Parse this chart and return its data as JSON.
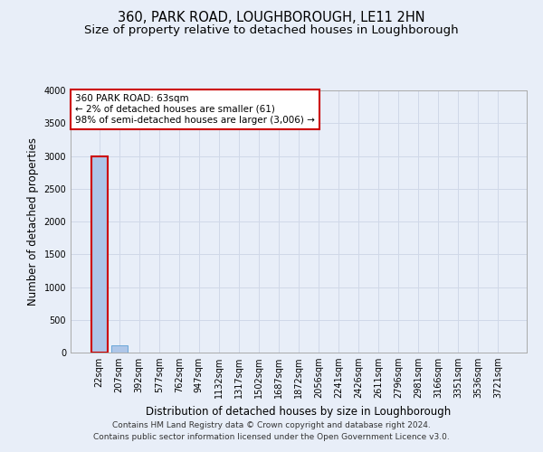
{
  "title": "360, PARK ROAD, LOUGHBOROUGH, LE11 2HN",
  "subtitle": "Size of property relative to detached houses in Loughborough",
  "xlabel": "Distribution of detached houses by size in Loughborough",
  "ylabel": "Number of detached properties",
  "categories": [
    "22sqm",
    "207sqm",
    "392sqm",
    "577sqm",
    "762sqm",
    "947sqm",
    "1132sqm",
    "1317sqm",
    "1502sqm",
    "1687sqm",
    "1872sqm",
    "2056sqm",
    "2241sqm",
    "2426sqm",
    "2611sqm",
    "2796sqm",
    "2981sqm",
    "3166sqm",
    "3351sqm",
    "3536sqm",
    "3721sqm"
  ],
  "values": [
    3000,
    110,
    5,
    3,
    2,
    2,
    1,
    1,
    1,
    1,
    1,
    1,
    1,
    1,
    1,
    1,
    1,
    1,
    1,
    1,
    1
  ],
  "bar_color": "#aec6e8",
  "bar_edge_color": "#5a9fd4",
  "highlight_bar_index": 0,
  "highlight_bar_color": "#aec6e8",
  "highlight_bar_edge_color": "#cc0000",
  "annotation_line1": "360 PARK ROAD: 63sqm",
  "annotation_line2": "← 2% of detached houses are smaller (61)",
  "annotation_line3": "98% of semi-detached houses are larger (3,006) →",
  "annotation_box_edge_color": "#cc0000",
  "annotation_box_bg_color": "#ffffff",
  "ylim": [
    0,
    4000
  ],
  "yticks": [
    0,
    500,
    1000,
    1500,
    2000,
    2500,
    3000,
    3500,
    4000
  ],
  "grid_color": "#d0d8e8",
  "background_color": "#e8eef8",
  "footer_line1": "Contains HM Land Registry data © Crown copyright and database right 2024.",
  "footer_line2": "Contains public sector information licensed under the Open Government Licence v3.0.",
  "title_fontsize": 10.5,
  "subtitle_fontsize": 9.5,
  "xlabel_fontsize": 8.5,
  "ylabel_fontsize": 8.5,
  "tick_fontsize": 7,
  "annotation_fontsize": 7.5,
  "footer_fontsize": 6.5
}
